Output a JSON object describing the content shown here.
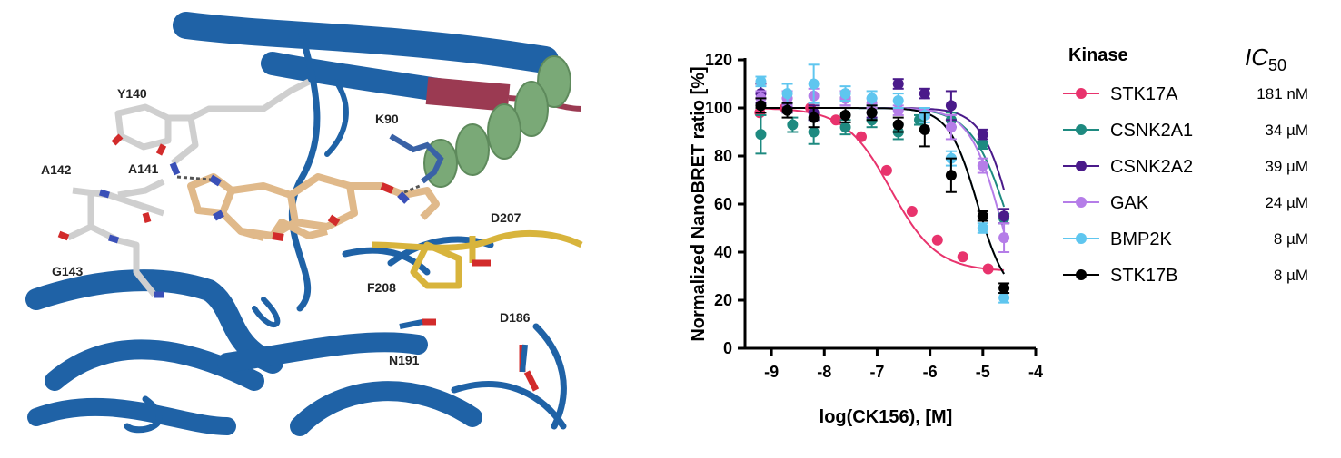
{
  "structure": {
    "residue_labels": [
      {
        "id": "Y140",
        "text": "Y140"
      },
      {
        "id": "K90",
        "text": "K90"
      },
      {
        "id": "A142",
        "text": "A142"
      },
      {
        "id": "A141",
        "text": "A141"
      },
      {
        "id": "G143",
        "text": "G143"
      },
      {
        "id": "D207",
        "text": "D207"
      },
      {
        "id": "F208",
        "text": "F208"
      },
      {
        "id": "D186",
        "text": "D186"
      },
      {
        "id": "N191",
        "text": "N191"
      }
    ],
    "colors": {
      "ribbon": "#1f62a6",
      "helix_green": "#7aa977",
      "strand_red": "#9b3a52",
      "loop_yellow": "#d8b43c",
      "ligand_tan": "#e0b98a",
      "residue_gray": "#cfcfcf",
      "nitrogen": "#3a50b8",
      "oxygen": "#d22b2b"
    }
  },
  "chart_data": {
    "type": "scatter",
    "xlabel": "log(CK156), [M]",
    "ylabel": "Normalized NanoBRET ratio [%]",
    "xlim": [
      -9.5,
      -4
    ],
    "ylim": [
      0,
      120
    ],
    "xticks": [
      "-9",
      "-8",
      "-7",
      "-6",
      "-5",
      "-4"
    ],
    "yticks": [
      "0",
      "20",
      "40",
      "60",
      "80",
      "100",
      "120"
    ],
    "legend_title": "Kinase",
    "ic50_header": {
      "main": "IC",
      "sub": "50"
    },
    "series": [
      {
        "name": "STK17A",
        "ic50": "181 nM",
        "color": "#e8336d",
        "logIC50": -6.74,
        "bottom": 32,
        "top": 100,
        "hill": 1.0,
        "x": [
          -9.22,
          -8.74,
          -8.26,
          -7.78,
          -7.3,
          -6.82,
          -6.34,
          -5.86,
          -5.38,
          -4.9
        ],
        "y": [
          98,
          100,
          100,
          95,
          88,
          74,
          57,
          45,
          38,
          33
        ],
        "err": [
          0,
          0,
          0,
          0,
          0,
          0,
          0,
          0,
          0,
          0
        ]
      },
      {
        "name": "CSNK2A1",
        "ic50": "34 µM",
        "color": "#1e8a80",
        "logIC50": -4.47,
        "bottom": 0,
        "top": 100,
        "hill": 1.2,
        "x": [
          -9.2,
          -8.6,
          -8.2,
          -7.6,
          -7.1,
          -6.6,
          -6.2,
          -5.6,
          -5.0,
          -4.6
        ],
        "y": [
          89,
          93,
          90,
          92,
          95,
          90,
          95,
          95,
          85,
          54
        ],
        "err": [
          8,
          3,
          5,
          3,
          3,
          3,
          2,
          3,
          2,
          2
        ]
      },
      {
        "name": "CSNK2A2",
        "ic50": "39 µM",
        "color": "#4a1a8a",
        "logIC50": -4.41,
        "bottom": 0,
        "top": 100,
        "hill": 1.5,
        "x": [
          -9.2,
          -8.7,
          -8.2,
          -7.6,
          -7.1,
          -6.6,
          -6.1,
          -5.6,
          -5.0,
          -4.6
        ],
        "y": [
          106,
          101,
          98,
          104,
          98,
          110,
          106,
          101,
          89,
          55
        ],
        "err": [
          4,
          3,
          3,
          3,
          2,
          2,
          2,
          6,
          2,
          3
        ]
      },
      {
        "name": "GAK",
        "ic50": "24 µM",
        "color": "#b57de8",
        "logIC50": -4.62,
        "bottom": 0,
        "top": 100,
        "hill": 1.4,
        "x": [
          -9.2,
          -8.7,
          -8.2,
          -7.6,
          -7.1,
          -6.6,
          -6.1,
          -5.6,
          -5.0,
          -4.6
        ],
        "y": [
          104,
          104,
          105,
          104,
          102,
          99,
          98,
          92,
          76,
          46
        ],
        "err": [
          3,
          3,
          3,
          3,
          2,
          2,
          2,
          5,
          3,
          6
        ]
      },
      {
        "name": "BMP2K",
        "ic50": "8 µM",
        "color": "#5fc6ef",
        "logIC50": -5.1,
        "bottom": 20,
        "top": 100,
        "hill": 1.6,
        "x": [
          -9.2,
          -8.7,
          -8.2,
          -7.6,
          -7.1,
          -6.6,
          -6.1,
          -5.6,
          -5.0,
          -4.6
        ],
        "y": [
          111,
          106,
          110,
          106,
          104,
          103,
          97,
          79,
          50,
          21
        ],
        "err": [
          2,
          4,
          8,
          3,
          3,
          3,
          3,
          3,
          2,
          2
        ]
      },
      {
        "name": "STK17B",
        "ic50": "8 µM",
        "color": "#000000",
        "logIC50": -5.1,
        "bottom": 20,
        "top": 100,
        "hill": 1.6,
        "x": [
          -9.2,
          -8.7,
          -8.2,
          -7.6,
          -7.1,
          -6.6,
          -6.1,
          -5.6,
          -5.0,
          -4.6
        ],
        "y": [
          101,
          99,
          96,
          97,
          98,
          93,
          91,
          72,
          55,
          25
        ],
        "err": [
          3,
          3,
          4,
          3,
          3,
          3,
          7,
          7,
          2,
          2
        ]
      }
    ]
  }
}
